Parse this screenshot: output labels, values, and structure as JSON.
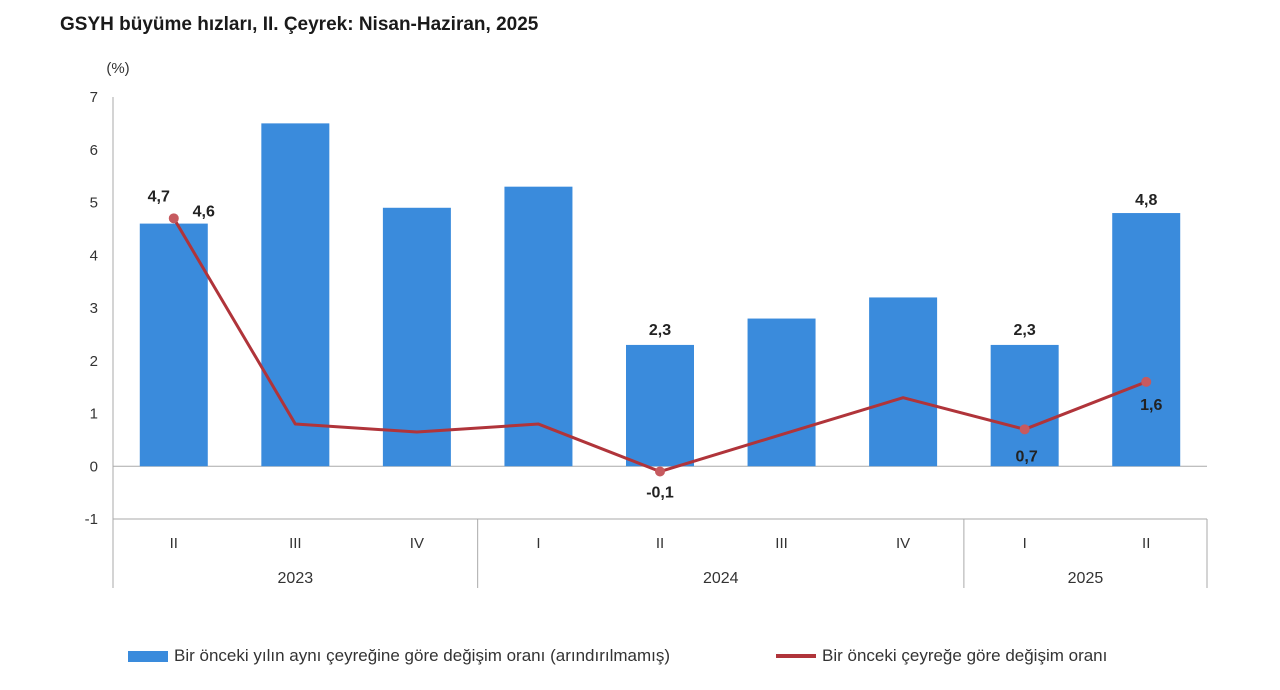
{
  "colors": {
    "bar": "#3a8bdc",
    "line": "#b0343a",
    "marker": "#c65a5f",
    "axis": "#aaaaaa"
  },
  "chart_data": {
    "type": "bar+line",
    "title": "GSYH büyüme hızları, II. Çeyrek: Nisan-Haziran, 2025",
    "ylabel": "(%)",
    "ylim": [
      -1,
      7
    ],
    "yticks": [
      "-1",
      "0",
      "1",
      "2",
      "3",
      "4",
      "5",
      "6",
      "7"
    ],
    "categories": [
      "II",
      "III",
      "IV",
      "I",
      "II",
      "III",
      "IV",
      "I",
      "II"
    ],
    "groups": [
      {
        "label": "2023",
        "count": 3
      },
      {
        "label": "2024",
        "count": 4
      },
      {
        "label": "2025",
        "count": 2
      }
    ],
    "series": [
      {
        "name": "Bir önceki yılın aynı çeyreğine göre değişim oranı (arındırılmamış)",
        "kind": "bar",
        "values": [
          4.6,
          6.5,
          4.9,
          5.3,
          2.3,
          2.8,
          3.2,
          2.3,
          4.8
        ],
        "labels": [
          "4,6",
          "",
          "",
          "",
          "2,3",
          "",
          "",
          "2,3",
          "4,8"
        ]
      },
      {
        "name": "Bir önceki çeyreğe göre değişim oranı",
        "kind": "line",
        "values": [
          4.7,
          0.8,
          0.65,
          0.8,
          -0.1,
          0.6,
          1.3,
          0.7,
          1.6
        ],
        "labels": [
          "4,7",
          "",
          "",
          "",
          "-0,1",
          "",
          "",
          "0,7",
          "1,6"
        ]
      }
    ]
  }
}
